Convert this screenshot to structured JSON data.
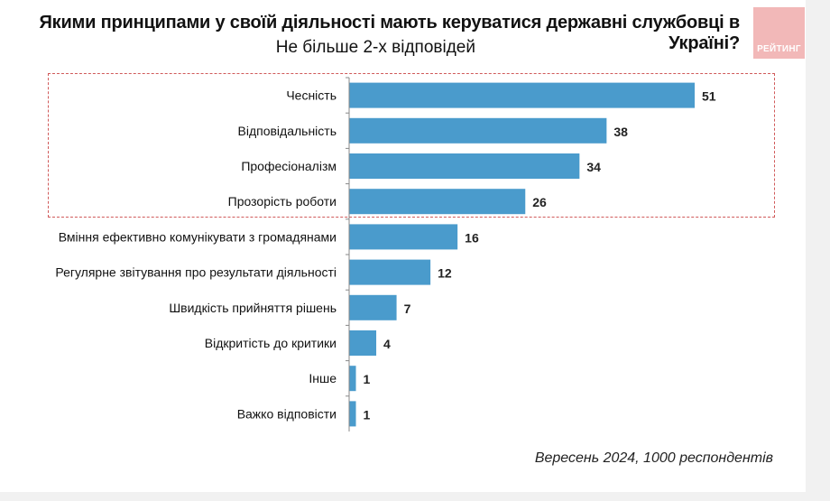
{
  "header": {
    "title": "Якими принципами у своїй діяльності мають керуватися державні службовці в Україні?",
    "subtitle": "Не більше 2-х відповідей",
    "logo_text": "РЕЙТИНГ"
  },
  "footer": {
    "note": "Вересень 2024, 1000 респондентів"
  },
  "colors": {
    "bar": "#4a9bcc",
    "highlight_border": "#d05a5a",
    "logo_bg": "#f2b8b8"
  },
  "chart_data": {
    "type": "bar",
    "orientation": "horizontal",
    "title": "Якими принципами у своїй діяльності мають керуватися державні службовці в Україні?",
    "subtitle": "Не більше 2-х відповідей",
    "xlabel": "",
    "ylabel": "",
    "unit": "%",
    "xlim": [
      0,
      60
    ],
    "grid": false,
    "categories": [
      "Чесність",
      "Відповідальність",
      "Професіоналізм",
      "Прозорість роботи",
      "Вміння ефективно комунікувати з громадянами",
      "Регулярне звітування про результати діяльності",
      "Швидкість прийняття рішень",
      "Відкритість до критики",
      "Інше",
      "Важко відповісти"
    ],
    "values": [
      51,
      38,
      34,
      26,
      16,
      12,
      7,
      4,
      1,
      1
    ],
    "highlighted_categories": [
      "Чесність",
      "Відповідальність",
      "Професіоналізм",
      "Прозорість роботи"
    ],
    "annotation": "Вересень 2024, 1000 респондентів"
  }
}
